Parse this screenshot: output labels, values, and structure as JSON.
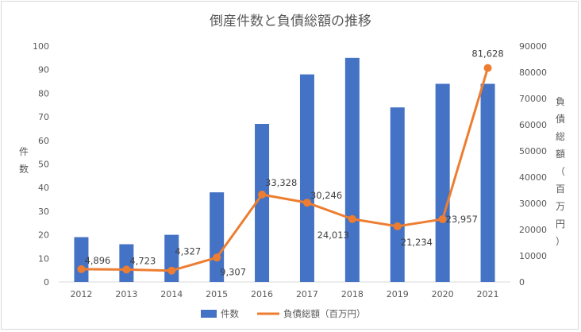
{
  "chart_data": {
    "type": "bar",
    "title": "倒産件数と負債総額の推移",
    "categories": [
      "2012",
      "2013",
      "2014",
      "2015",
      "2016",
      "2017",
      "2018",
      "2019",
      "2020",
      "2021"
    ],
    "series": [
      {
        "name": "件数",
        "type": "bar",
        "axis": "left",
        "color": "#4472c4",
        "values": [
          19,
          16,
          20,
          38,
          67,
          88,
          95,
          74,
          84,
          84
        ]
      },
      {
        "name": "負債総額（百万円）",
        "type": "line",
        "axis": "right",
        "color": "#ed7d31",
        "values": [
          4896,
          4723,
          4327,
          9307,
          33328,
          30246,
          24013,
          21234,
          23957,
          81628
        ],
        "labels": [
          "4,896",
          "4,723",
          "4,327",
          "9,307",
          "33,328",
          "30,246",
          "24,013",
          "21,234",
          "23,957",
          "81,628"
        ]
      }
    ],
    "ylabel_left": "件数",
    "ylabel_right": "負債総額（百万円）",
    "ylim_left": [
      0,
      100
    ],
    "yticks_left": [
      "0",
      "10",
      "20",
      "30",
      "40",
      "50",
      "60",
      "70",
      "80",
      "90",
      "100"
    ],
    "ylim_right": [
      0,
      90000
    ],
    "yticks_right": [
      "0",
      "10000",
      "20000",
      "30000",
      "40000",
      "50000",
      "60000",
      "70000",
      "80000",
      "90000"
    ],
    "grid": false,
    "legend": "bottom"
  }
}
